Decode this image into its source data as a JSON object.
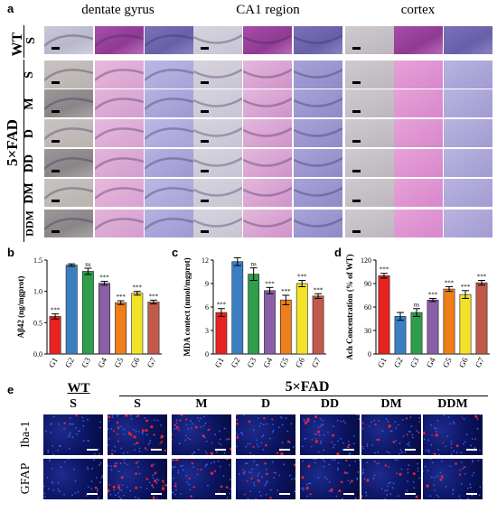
{
  "panel_a": {
    "letter": "a",
    "columns": [
      "dentate gyrus",
      "CA1 region",
      "cortex"
    ],
    "wt_group": "WT",
    "fad_group": "5×FAD",
    "rows": [
      "S",
      "S",
      "M",
      "D",
      "DD",
      "DM",
      "DDM"
    ]
  },
  "panel_e": {
    "letter": "e",
    "wt_group": "WT",
    "fad_group": "5×FAD",
    "columns": [
      "S",
      "S",
      "M",
      "D",
      "DD",
      "DM",
      "DDM"
    ],
    "rows": [
      "Iba-1",
      "GFAP"
    ]
  },
  "chart_data": [
    {
      "panel": "b",
      "type": "bar",
      "categories": [
        "G1",
        "G2",
        "G3",
        "G4",
        "G5",
        "G6",
        "G7"
      ],
      "values": [
        0.6,
        1.42,
        1.32,
        1.13,
        0.82,
        0.97,
        0.83
      ],
      "errors": [
        0.04,
        0.02,
        0.05,
        0.03,
        0.03,
        0.03,
        0.03
      ],
      "sig": [
        "***",
        "",
        "ns",
        "***",
        "***",
        "***",
        "***"
      ],
      "colors": [
        "#e8231f",
        "#3b7fc3",
        "#2e9e4a",
        "#8b5ea8",
        "#ef7f1a",
        "#f3e227",
        "#c15a4a"
      ],
      "ylabel": "Aβ42 (ng/mgprot)",
      "ylim": [
        0,
        1.5
      ],
      "yticks": [
        "0.0",
        "0.5",
        "1.0",
        "1.5"
      ],
      "ytick_values": [
        0,
        0.5,
        1.0,
        1.5
      ]
    },
    {
      "panel": "c",
      "type": "bar",
      "categories": [
        "G1",
        "G2",
        "G3",
        "G4",
        "G5",
        "G6",
        "G7"
      ],
      "values": [
        5.3,
        11.8,
        10.2,
        8.1,
        6.9,
        9.0,
        7.4
      ],
      "errors": [
        0.5,
        0.5,
        0.8,
        0.4,
        0.6,
        0.4,
        0.3
      ],
      "sig": [
        "***",
        "",
        "ns",
        "***",
        "***",
        "***",
        "***"
      ],
      "colors": [
        "#e8231f",
        "#3b7fc3",
        "#2e9e4a",
        "#8b5ea8",
        "#ef7f1a",
        "#f3e227",
        "#c15a4a"
      ],
      "ylabel": "MDA contect (nmol/mgprot)",
      "ylim": [
        0,
        12
      ],
      "yticks": [
        "0",
        "3",
        "6",
        "9",
        "12"
      ],
      "ytick_values": [
        0,
        3,
        6,
        9,
        12
      ]
    },
    {
      "panel": "d",
      "type": "bar",
      "categories": [
        "G1",
        "G2",
        "G3",
        "G4",
        "G5",
        "G6",
        "G7"
      ],
      "values": [
        100,
        48,
        53,
        69,
        83,
        76,
        91
      ],
      "errors": [
        3,
        5,
        5,
        2,
        3,
        5,
        3
      ],
      "sig": [
        "***",
        "",
        "ns",
        "***",
        "***",
        "***",
        "***"
      ],
      "colors": [
        "#e8231f",
        "#3b7fc3",
        "#2e9e4a",
        "#8b5ea8",
        "#ef7f1a",
        "#f3e227",
        "#c15a4a"
      ],
      "ylabel": "Ach Concentration (% of WT)",
      "ylim": [
        0,
        120
      ],
      "yticks": [
        "0",
        "30",
        "60",
        "90",
        "120"
      ],
      "ytick_values": [
        0,
        30,
        60,
        90,
        120
      ]
    }
  ]
}
